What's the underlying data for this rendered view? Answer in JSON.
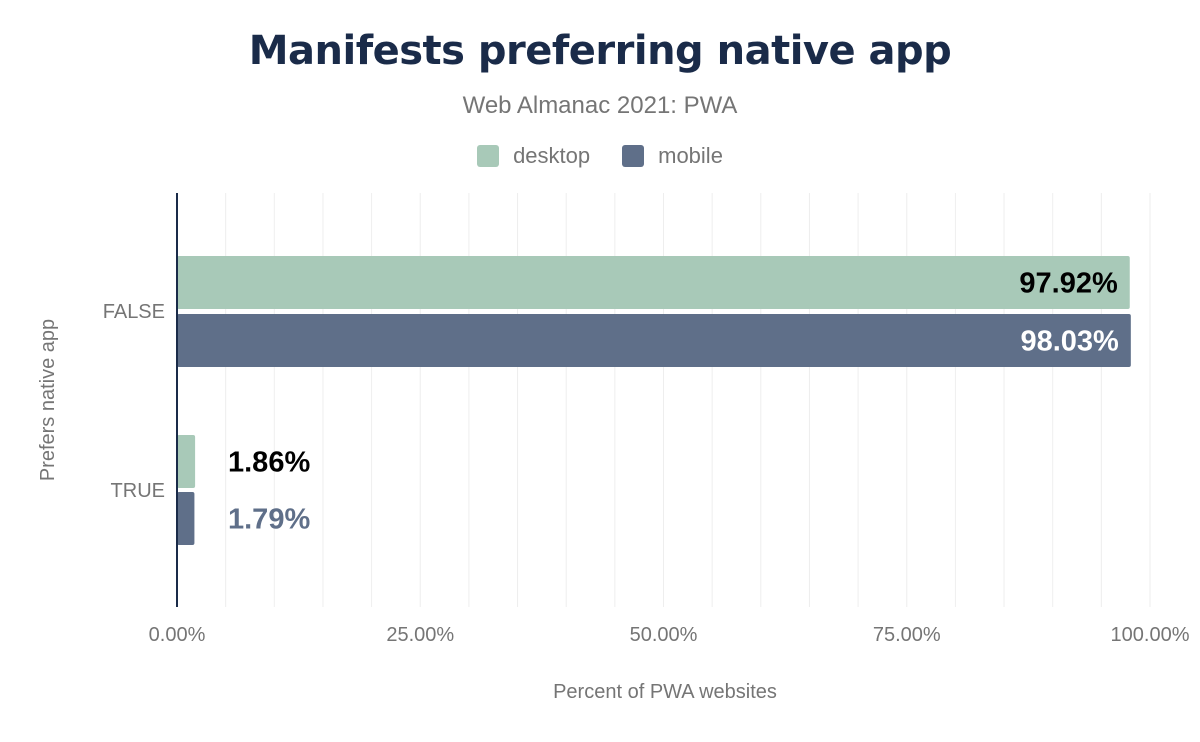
{
  "chart_data": {
    "type": "bar",
    "orientation": "horizontal",
    "title": "Manifests preferring native app",
    "subtitle": "Web Almanac 2021: PWA",
    "xlabel": "Percent of PWA websites",
    "ylabel": "Prefers native app",
    "categories": [
      "FALSE",
      "TRUE"
    ],
    "series": [
      {
        "name": "desktop",
        "color": "#a8c9b8",
        "values": [
          97.92,
          1.86
        ],
        "labels": [
          "97.92%",
          "1.86%"
        ]
      },
      {
        "name": "mobile",
        "color": "#5f6f89",
        "values": [
          98.03,
          1.79
        ],
        "labels": [
          "98.03%",
          "1.79%"
        ]
      }
    ],
    "xlim": [
      0,
      100
    ],
    "xticks": [
      "0.00%",
      "25.00%",
      "50.00%",
      "75.00%",
      "100.00%"
    ],
    "grid": true,
    "legend": "top-center"
  }
}
